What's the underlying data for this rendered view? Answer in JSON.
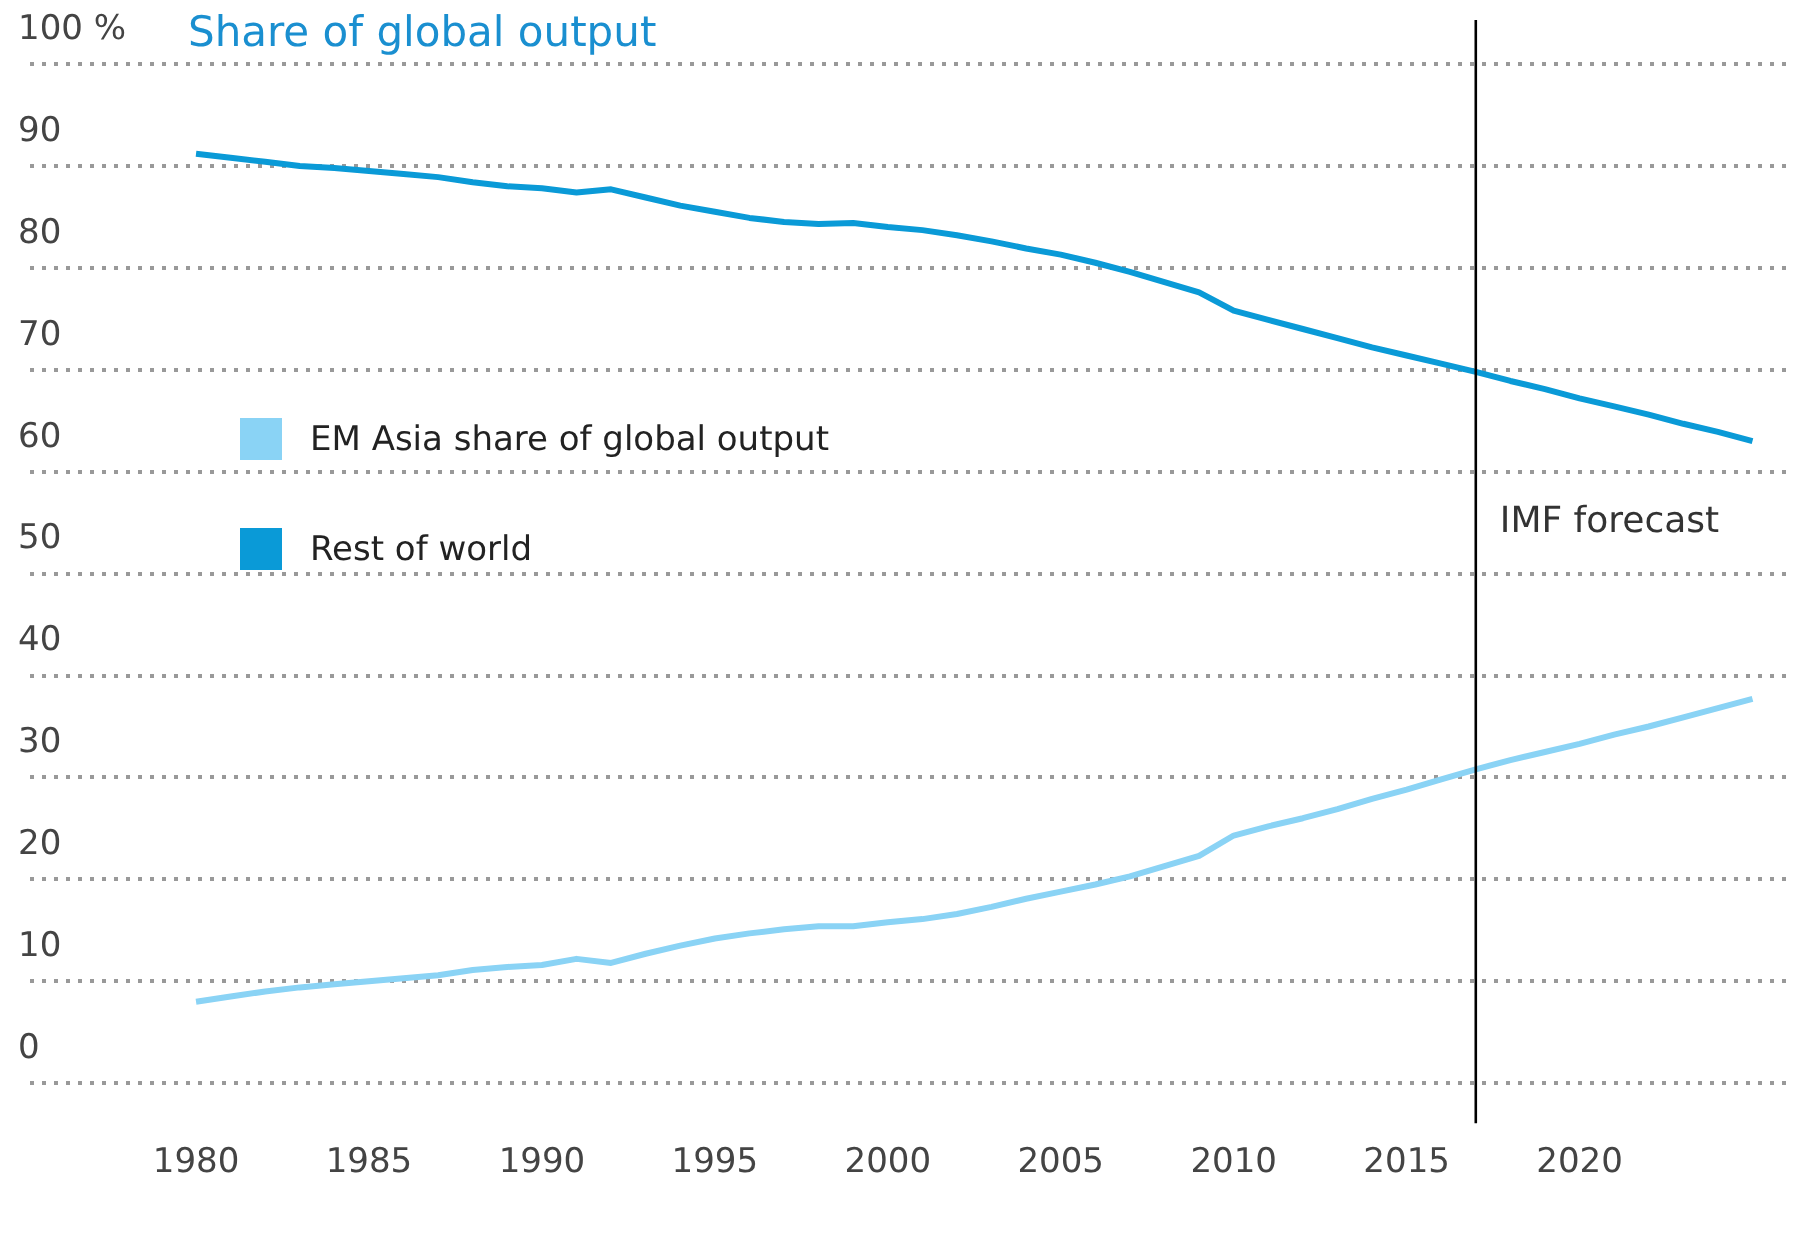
{
  "chart_data": {
    "type": "line",
    "title": "Share of global output",
    "x": [
      1980,
      1981,
      1982,
      1983,
      1984,
      1985,
      1986,
      1987,
      1988,
      1989,
      1990,
      1991,
      1992,
      1993,
      1994,
      1995,
      1996,
      1997,
      1998,
      1999,
      2000,
      2001,
      2002,
      2003,
      2004,
      2005,
      2006,
      2007,
      2008,
      2009,
      2010,
      2011,
      2012,
      2013,
      2014,
      2015,
      2016,
      2017,
      2018,
      2019,
      2020,
      2021,
      2022,
      2023,
      2024,
      2025
    ],
    "series": [
      {
        "name": "EM Asia share of global output",
        "color": "#8ad3f5",
        "values": [
          8.0,
          8.5,
          9.0,
          9.4,
          9.7,
          10.0,
          10.3,
          10.6,
          11.1,
          11.4,
          11.6,
          12.2,
          11.8,
          12.7,
          13.5,
          14.2,
          14.7,
          15.1,
          15.4,
          15.4,
          15.8,
          16.1,
          16.6,
          17.3,
          18.1,
          18.8,
          19.5,
          20.3,
          21.3,
          22.3,
          24.3,
          25.2,
          26.0,
          26.9,
          27.9,
          28.8,
          29.8,
          30.8,
          31.7,
          32.5,
          33.3,
          34.2,
          35.0,
          35.9,
          36.8,
          37.7
        ]
      },
      {
        "name": "Rest of world",
        "color": "#0a9ad7",
        "values": [
          91.2,
          90.8,
          90.4,
          90.0,
          89.8,
          89.5,
          89.2,
          88.9,
          88.4,
          88.0,
          87.8,
          87.4,
          87.7,
          86.9,
          86.1,
          85.5,
          84.9,
          84.5,
          84.3,
          84.4,
          84.0,
          83.7,
          83.2,
          82.6,
          81.9,
          81.3,
          80.5,
          79.6,
          78.6,
          77.6,
          75.8,
          74.9,
          74.0,
          73.1,
          72.2,
          71.4,
          70.6,
          69.8,
          68.9,
          68.1,
          67.2,
          66.4,
          65.6,
          64.7,
          63.9,
          63.0
        ]
      }
    ],
    "xlim": [
      1975.2,
      2026.2
    ],
    "xticks": [
      1980,
      1985,
      1990,
      1995,
      2000,
      2005,
      2010,
      2015,
      2020
    ],
    "ylim": [
      0,
      100
    ],
    "yticks": [
      0,
      10,
      20,
      30,
      40,
      50,
      60,
      70,
      80,
      90,
      {
        "value": 100,
        "label": "100 %"
      }
    ],
    "grid": "y",
    "legend": "left",
    "marker": "none",
    "line_style": "solid",
    "ref_lines": [
      {
        "axis": "x",
        "value": 2017,
        "label": "IMF forecast",
        "color": "#000000"
      }
    ]
  }
}
